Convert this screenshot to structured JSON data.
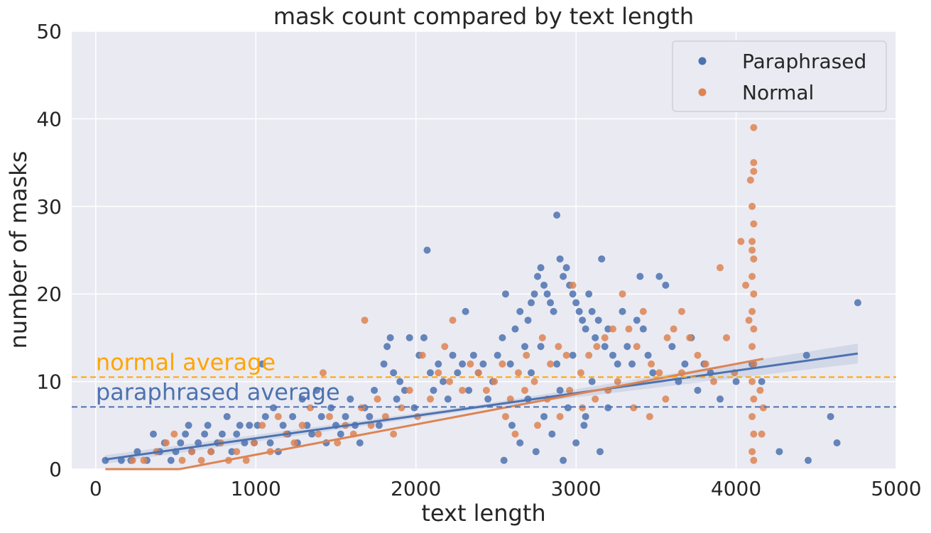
{
  "chart_data": {
    "type": "scatter",
    "title": "mask count compared by text length",
    "xlabel": "text length",
    "ylabel": "number of masks",
    "xlim": [
      -150,
      5000
    ],
    "ylim": [
      0,
      50
    ],
    "xticks": [
      0,
      1000,
      2000,
      3000,
      4000,
      5000
    ],
    "yticks": [
      0,
      10,
      20,
      30,
      40,
      50
    ],
    "grid": true,
    "legend_position": "top-right",
    "colors": {
      "background": "#eaeaf2",
      "grid": "#ffffff",
      "paraphrased": "#4c72b0",
      "normal": "#dd8452",
      "normal_average_line": "#ffa500"
    },
    "series": [
      {
        "name": "Paraphrased",
        "color": "#4c72b0",
        "regression": {
          "x": [
            60,
            4760
          ],
          "y": [
            1.1,
            13.2
          ]
        },
        "points": [
          [
            60,
            1
          ],
          [
            160,
            1
          ],
          [
            220,
            1
          ],
          [
            260,
            2
          ],
          [
            320,
            1
          ],
          [
            360,
            4
          ],
          [
            400,
            2
          ],
          [
            430,
            3
          ],
          [
            470,
            1
          ],
          [
            500,
            2
          ],
          [
            530,
            3
          ],
          [
            560,
            4
          ],
          [
            580,
            5
          ],
          [
            600,
            2
          ],
          [
            640,
            3
          ],
          [
            680,
            4
          ],
          [
            700,
            5
          ],
          [
            720,
            2
          ],
          [
            760,
            3
          ],
          [
            790,
            4
          ],
          [
            820,
            6
          ],
          [
            850,
            2
          ],
          [
            880,
            4
          ],
          [
            900,
            5
          ],
          [
            930,
            3
          ],
          [
            960,
            5
          ],
          [
            990,
            3
          ],
          [
            1010,
            5
          ],
          [
            1040,
            12
          ],
          [
            1060,
            6
          ],
          [
            1090,
            3
          ],
          [
            1110,
            7
          ],
          [
            1140,
            2
          ],
          [
            1170,
            5
          ],
          [
            1200,
            4
          ],
          [
            1230,
            6
          ],
          [
            1260,
            3
          ],
          [
            1290,
            8
          ],
          [
            1320,
            5
          ],
          [
            1350,
            4
          ],
          [
            1380,
            9
          ],
          [
            1410,
            6
          ],
          [
            1440,
            3
          ],
          [
            1470,
            7
          ],
          [
            1500,
            5
          ],
          [
            1530,
            4
          ],
          [
            1560,
            6
          ],
          [
            1590,
            8
          ],
          [
            1620,
            5
          ],
          [
            1650,
            3
          ],
          [
            1680,
            7
          ],
          [
            1710,
            6
          ],
          [
            1740,
            9
          ],
          [
            1770,
            5
          ],
          [
            1800,
            12
          ],
          [
            1820,
            14
          ],
          [
            1840,
            15
          ],
          [
            1860,
            11
          ],
          [
            1880,
            8
          ],
          [
            1900,
            10
          ],
          [
            1930,
            9
          ],
          [
            1960,
            15
          ],
          [
            1990,
            7
          ],
          [
            2020,
            13
          ],
          [
            2050,
            15
          ],
          [
            2070,
            25
          ],
          [
            2090,
            11
          ],
          [
            2110,
            9
          ],
          [
            2140,
            12
          ],
          [
            2170,
            10
          ],
          [
            2200,
            8
          ],
          [
            2230,
            13
          ],
          [
            2260,
            11
          ],
          [
            2290,
            12
          ],
          [
            2310,
            18
          ],
          [
            2330,
            9
          ],
          [
            2360,
            13
          ],
          [
            2390,
            11
          ],
          [
            2420,
            12
          ],
          [
            2450,
            8
          ],
          [
            2480,
            10
          ],
          [
            2510,
            13
          ],
          [
            2540,
            15
          ],
          [
            2560,
            20
          ],
          [
            2590,
            12
          ],
          [
            2620,
            16
          ],
          [
            2650,
            18
          ],
          [
            2680,
            14
          ],
          [
            2700,
            17
          ],
          [
            2720,
            19
          ],
          [
            2740,
            20
          ],
          [
            2760,
            22
          ],
          [
            2780,
            23
          ],
          [
            2800,
            21
          ],
          [
            2820,
            20
          ],
          [
            2840,
            19
          ],
          [
            2860,
            18
          ],
          [
            2880,
            29
          ],
          [
            2900,
            24
          ],
          [
            2920,
            22
          ],
          [
            2940,
            23
          ],
          [
            2960,
            21
          ],
          [
            2980,
            20
          ],
          [
            3000,
            19
          ],
          [
            3020,
            18
          ],
          [
            3040,
            17
          ],
          [
            3060,
            16
          ],
          [
            3080,
            20
          ],
          [
            3100,
            18
          ],
          [
            3120,
            15
          ],
          [
            3140,
            17
          ],
          [
            3160,
            24
          ],
          [
            3180,
            14
          ],
          [
            3200,
            16
          ],
          [
            3230,
            13
          ],
          [
            3260,
            12
          ],
          [
            3290,
            18
          ],
          [
            3320,
            14
          ],
          [
            3350,
            12
          ],
          [
            3380,
            17
          ],
          [
            3400,
            22
          ],
          [
            3420,
            16
          ],
          [
            3450,
            13
          ],
          [
            3480,
            11
          ],
          [
            3520,
            22
          ],
          [
            3560,
            21
          ],
          [
            3600,
            14
          ],
          [
            3640,
            10
          ],
          [
            3680,
            12
          ],
          [
            3720,
            15
          ],
          [
            3760,
            9
          ],
          [
            3800,
            12
          ],
          [
            3840,
            11
          ],
          [
            3900,
            8
          ],
          [
            4000,
            10
          ],
          [
            4100,
            12
          ],
          [
            4160,
            10
          ],
          [
            4270,
            2
          ],
          [
            4440,
            13
          ],
          [
            4450,
            1
          ],
          [
            4590,
            6
          ],
          [
            4630,
            3
          ],
          [
            4760,
            19
          ],
          [
            2600,
            5
          ],
          [
            2650,
            3
          ],
          [
            2700,
            8
          ],
          [
            2750,
            2
          ],
          [
            2800,
            6
          ],
          [
            2850,
            4
          ],
          [
            2900,
            9
          ],
          [
            2950,
            7
          ],
          [
            3000,
            3
          ],
          [
            3050,
            5
          ],
          [
            3100,
            10
          ],
          [
            3150,
            2
          ],
          [
            3200,
            7
          ],
          [
            2550,
            1
          ],
          [
            2720,
            11
          ],
          [
            2880,
            12
          ],
          [
            2920,
            1
          ],
          [
            3060,
            6
          ],
          [
            2780,
            14
          ],
          [
            2980,
            13
          ]
        ]
      },
      {
        "name": "Normal",
        "color": "#dd8452",
        "regression": {
          "x": [
            60,
            4170
          ],
          "y": [
            -1.6,
            12.6
          ]
        },
        "points": [
          [
            230,
            1
          ],
          [
            300,
            1
          ],
          [
            380,
            2
          ],
          [
            440,
            3
          ],
          [
            490,
            4
          ],
          [
            540,
            1
          ],
          [
            600,
            2
          ],
          [
            660,
            1
          ],
          [
            720,
            2
          ],
          [
            780,
            3
          ],
          [
            830,
            1
          ],
          [
            880,
            2
          ],
          [
            940,
            1
          ],
          [
            990,
            3
          ],
          [
            1040,
            5
          ],
          [
            1090,
            2
          ],
          [
            1140,
            6
          ],
          [
            1190,
            4
          ],
          [
            1240,
            3
          ],
          [
            1290,
            5
          ],
          [
            1340,
            7
          ],
          [
            1390,
            4
          ],
          [
            1420,
            11
          ],
          [
            1460,
            6
          ],
          [
            1510,
            3
          ],
          [
            1560,
            5
          ],
          [
            1610,
            4
          ],
          [
            1660,
            7
          ],
          [
            1680,
            17
          ],
          [
            1720,
            5
          ],
          [
            1760,
            8
          ],
          [
            1810,
            6
          ],
          [
            1860,
            4
          ],
          [
            1910,
            7
          ],
          [
            1960,
            9
          ],
          [
            2010,
            6
          ],
          [
            2040,
            13
          ],
          [
            2090,
            8
          ],
          [
            2140,
            11
          ],
          [
            2180,
            14
          ],
          [
            2210,
            10
          ],
          [
            2230,
            17
          ],
          [
            2290,
            9
          ],
          [
            2340,
            12
          ],
          [
            2390,
            11
          ],
          [
            2440,
            9
          ],
          [
            2490,
            10
          ],
          [
            2540,
            12
          ],
          [
            2590,
            8
          ],
          [
            2640,
            11
          ],
          [
            2690,
            13
          ],
          [
            2740,
            10
          ],
          [
            2790,
            15
          ],
          [
            2840,
            12
          ],
          [
            2890,
            14
          ],
          [
            2940,
            13
          ],
          [
            2980,
            21
          ],
          [
            3030,
            11
          ],
          [
            3080,
            13
          ],
          [
            3130,
            14
          ],
          [
            3180,
            15
          ],
          [
            3230,
            16
          ],
          [
            3290,
            20
          ],
          [
            3330,
            16
          ],
          [
            3380,
            14
          ],
          [
            3420,
            18
          ],
          [
            3470,
            12
          ],
          [
            3520,
            11
          ],
          [
            3570,
            15
          ],
          [
            3610,
            16
          ],
          [
            3660,
            18
          ],
          [
            3710,
            15
          ],
          [
            3760,
            13
          ],
          [
            3810,
            12
          ],
          [
            3860,
            10
          ],
          [
            3900,
            23
          ],
          [
            3940,
            15
          ],
          [
            3990,
            11
          ],
          [
            4030,
            26
          ],
          [
            4060,
            21
          ],
          [
            4080,
            17
          ],
          [
            4090,
            33
          ],
          [
            4100,
            25
          ],
          [
            4110,
            39
          ],
          [
            4110,
            35
          ],
          [
            4110,
            34
          ],
          [
            4100,
            30
          ],
          [
            4110,
            28
          ],
          [
            4100,
            26
          ],
          [
            4110,
            24
          ],
          [
            4100,
            22
          ],
          [
            4110,
            20
          ],
          [
            4100,
            18
          ],
          [
            4110,
            16
          ],
          [
            4100,
            14
          ],
          [
            4110,
            12
          ],
          [
            4100,
            10
          ],
          [
            4110,
            8
          ],
          [
            4100,
            6
          ],
          [
            4110,
            4
          ],
          [
            4100,
            2
          ],
          [
            4110,
            1
          ],
          [
            4150,
            9
          ],
          [
            4160,
            4
          ],
          [
            4170,
            7
          ],
          [
            2560,
            6
          ],
          [
            2620,
            4
          ],
          [
            2680,
            9
          ],
          [
            2760,
            5
          ],
          [
            2820,
            8
          ],
          [
            2900,
            6
          ],
          [
            2960,
            9
          ],
          [
            3040,
            7
          ],
          [
            3120,
            8
          ],
          [
            3200,
            9
          ],
          [
            3260,
            10
          ],
          [
            3360,
            7
          ],
          [
            3460,
            6
          ],
          [
            3560,
            8
          ],
          [
            3660,
            11
          ]
        ]
      }
    ],
    "reference_lines": [
      {
        "label": "normal average",
        "y": 10.5,
        "color": "#ffa500"
      },
      {
        "label": "paraphrased average",
        "y": 7.1,
        "color": "#4c72b0"
      }
    ]
  }
}
